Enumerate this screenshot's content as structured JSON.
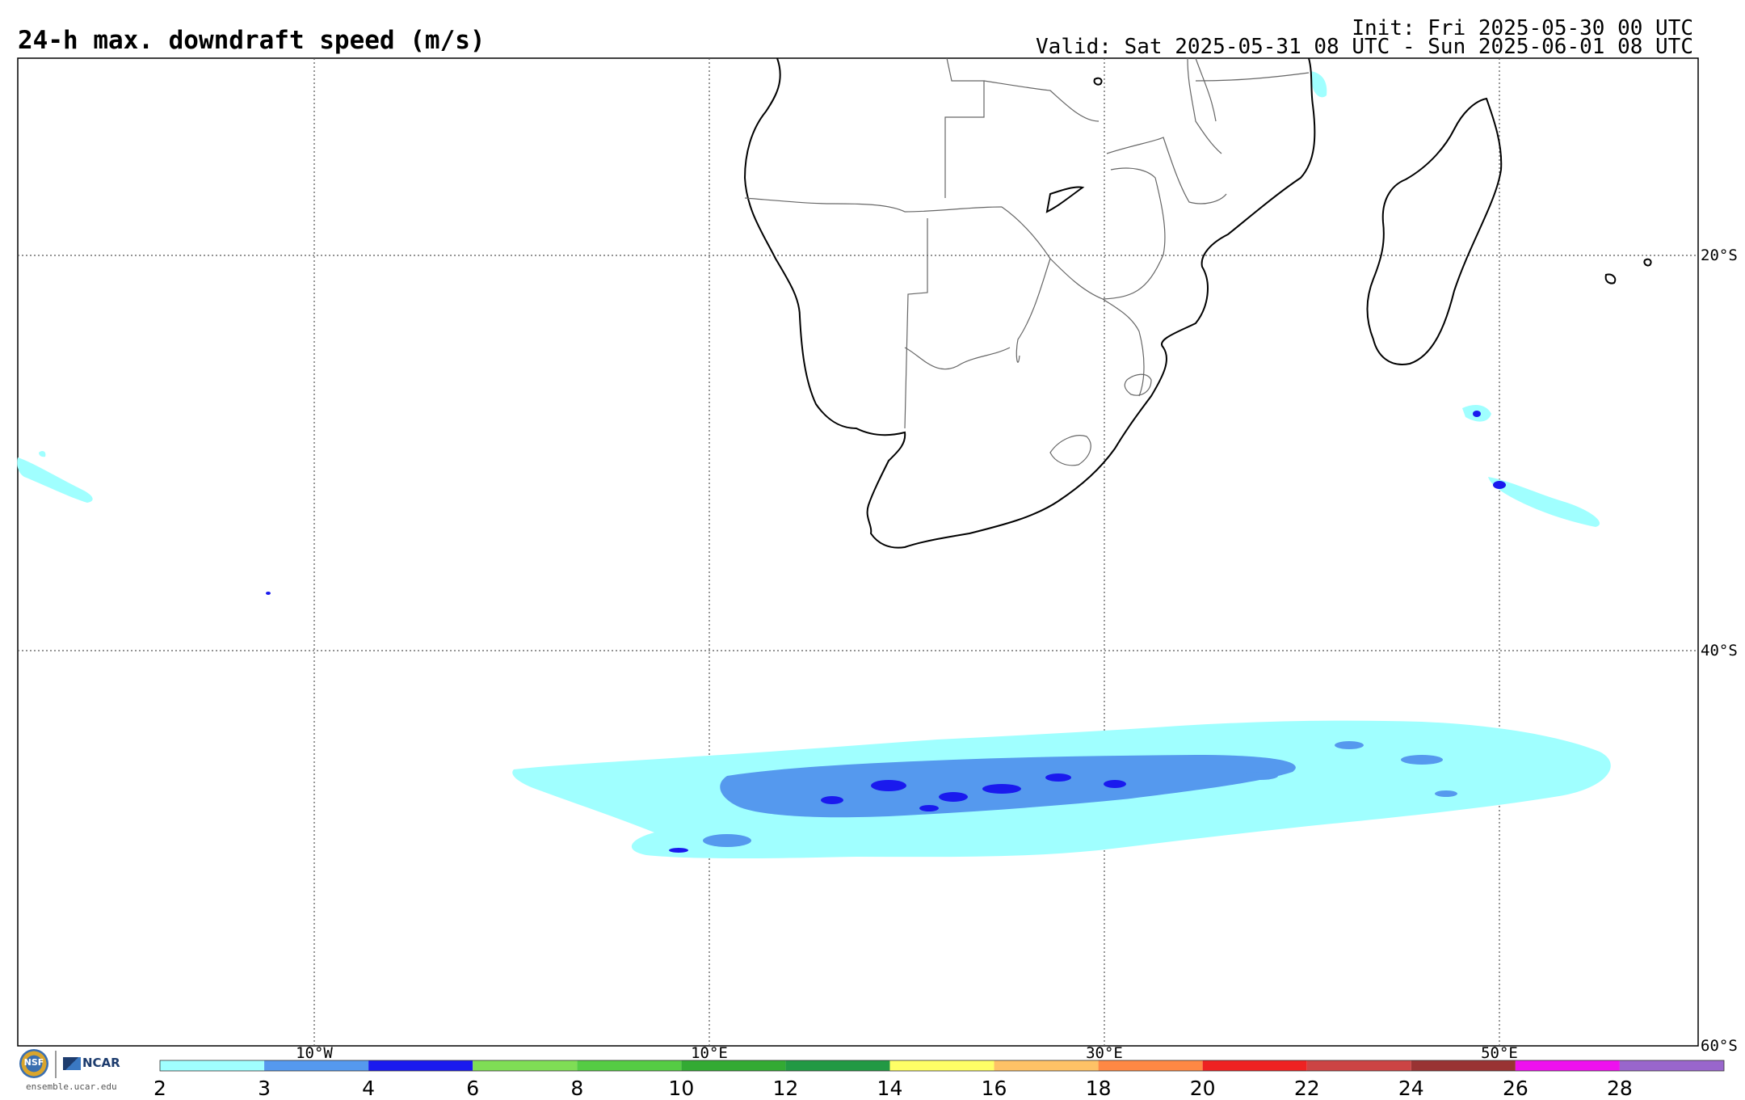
{
  "title": "24-h max. downdraft speed (m/s)",
  "init": "Init: Fri 2025-05-30 00 UTC",
  "valid": "Valid: Sat 2025-05-31 08 UTC - Sun 2025-06-01 08 UTC",
  "lat_labels": [
    "20°S",
    "40°S",
    "60°S"
  ],
  "lon_labels": [
    "10°W",
    "10°E",
    "30°E",
    "50°E"
  ],
  "colorbar": {
    "ticks": [
      "2",
      "3",
      "4",
      "6",
      "8",
      "10",
      "12",
      "14",
      "16",
      "18",
      "20",
      "22",
      "24",
      "26",
      "28"
    ],
    "colors": [
      "#a0ffff",
      "#5599ee",
      "#1a1aee",
      "#7fdd55",
      "#55cc44",
      "#33aa33",
      "#229944",
      "#ffff66",
      "#ffc266",
      "#ff8844",
      "#ee2222",
      "#cc4444",
      "#993333",
      "#ee11ee",
      "#9966cc"
    ]
  },
  "logos": {
    "nsf": "NSF",
    "ncar": "NCAR",
    "url": "ensemble.ucar.edu"
  },
  "colors": {
    "coast": "#000000",
    "borders": "#666666",
    "grid": "#555555"
  }
}
